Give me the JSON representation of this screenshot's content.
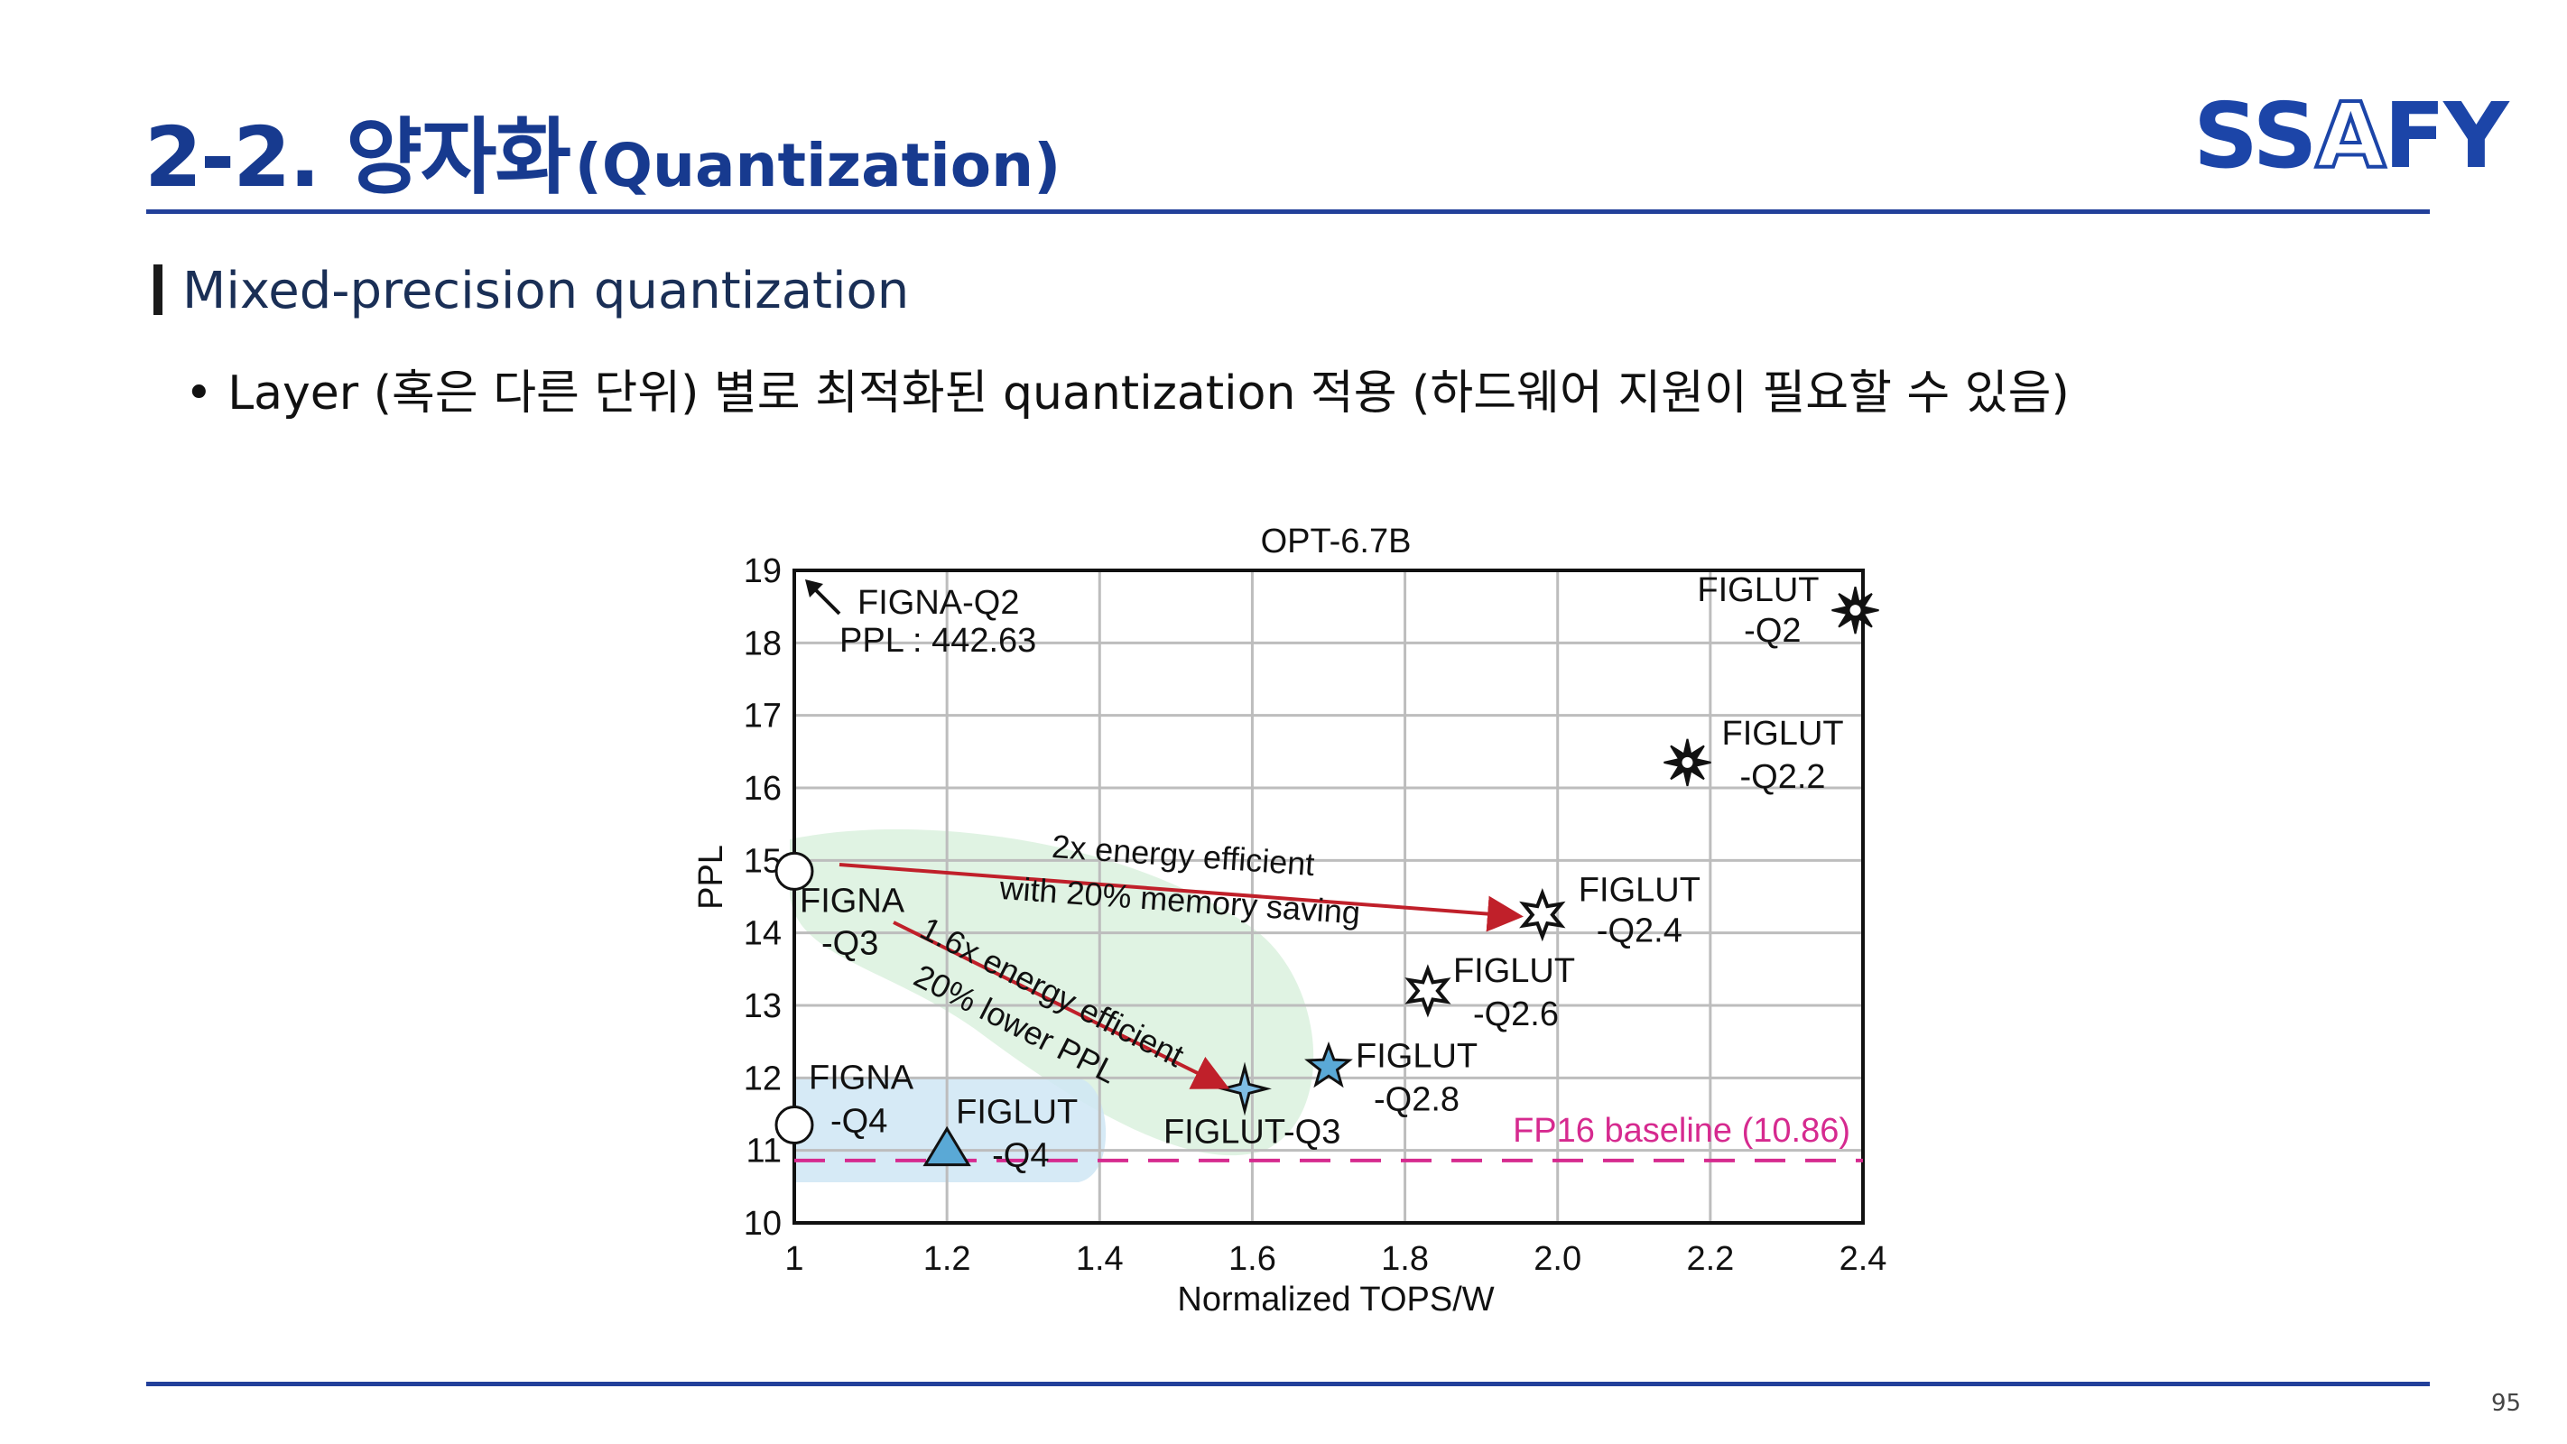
{
  "slide": {
    "title_number": "2-2. 양자화",
    "title_sub": "(Quantization)",
    "logo": {
      "part1": "SS",
      "part2": "A",
      "part3": "FY"
    },
    "subheading": "Mixed-precision quantization",
    "bullet": "• Layer (혹은 다른 단위) 별로 최적화된 quantization 적용 (하드웨어 지원이 필요할 수 있음)",
    "page_number": "95",
    "colors": {
      "brand": "#1c45a8",
      "rule": "#22409a",
      "arrow": "#c0202a",
      "baseline": "#d62a8f"
    }
  },
  "chart_data": {
    "type": "scatter",
    "title": "OPT-6.7B",
    "xlabel": "Normalized TOPS/W",
    "ylabel": "PPL",
    "xlim": [
      1,
      2.4
    ],
    "ylim": [
      10,
      19
    ],
    "xticks": [
      "1",
      "1.2",
      "1.4",
      "1.6",
      "1.8",
      "2.0",
      "2.2",
      "2.4"
    ],
    "yticks": [
      "10",
      "11",
      "12",
      "13",
      "14",
      "15",
      "16",
      "17",
      "18",
      "19"
    ],
    "grid": true,
    "points": [
      {
        "name": "FIGNA-Q3",
        "x": 1.0,
        "y": 14.85,
        "marker": "circle",
        "label": [
          "FIGNA",
          "-Q3"
        ]
      },
      {
        "name": "FIGNA-Q4",
        "x": 1.0,
        "y": 11.35,
        "marker": "circle",
        "label": [
          "FIGNA",
          "-Q4"
        ]
      },
      {
        "name": "FIGLUT-Q4",
        "x": 1.2,
        "y": 11.0,
        "marker": "triangle",
        "label": [
          "FIGLUT",
          "-Q4"
        ]
      },
      {
        "name": "FIGLUT-Q3",
        "x": 1.59,
        "y": 11.85,
        "marker": "star4",
        "label": [
          "FIGLUT-Q3"
        ]
      },
      {
        "name": "FIGLUT-Q2.8",
        "x": 1.7,
        "y": 12.15,
        "marker": "star5",
        "label": [
          "FIGLUT",
          "-Q2.8"
        ]
      },
      {
        "name": "FIGLUT-Q2.6",
        "x": 1.83,
        "y": 13.2,
        "marker": "star6",
        "label": [
          "FIGLUT",
          "-Q2.6"
        ]
      },
      {
        "name": "FIGLUT-Q2.4",
        "x": 1.98,
        "y": 14.25,
        "marker": "star6",
        "label": [
          "FIGLUT",
          "-Q2.4"
        ]
      },
      {
        "name": "FIGLUT-Q2.2",
        "x": 2.17,
        "y": 16.35,
        "marker": "star8",
        "label": [
          "FIGLUT",
          "-Q2.2"
        ]
      },
      {
        "name": "FIGLUT-Q2",
        "x": 2.39,
        "y": 18.45,
        "marker": "star8",
        "label": [
          "FIGLUT",
          "-Q2"
        ]
      }
    ],
    "baseline": {
      "label": "FP16 baseline (10.86)",
      "value": 10.86
    },
    "annotations": {
      "offscale": [
        "FIGNA-Q2",
        "PPL : 442.63"
      ],
      "arrow1": [
        "2x energy efficient",
        "with 20% memory saving"
      ],
      "arrow2": [
        "1.6x energy efficient",
        "20% lower PPL"
      ]
    }
  }
}
